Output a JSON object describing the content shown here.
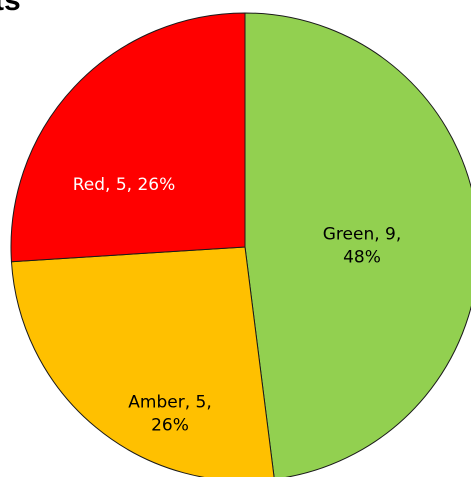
{
  "header": {
    "title_fragment": "ts"
  },
  "chart_data": {
    "type": "pie",
    "title": "",
    "slices": [
      {
        "category": "Green",
        "value": 9,
        "percent": 48,
        "color": "#92d050",
        "label_lines": [
          "Green, 9,",
          "48%"
        ],
        "label_color": "#000000"
      },
      {
        "category": "Amber",
        "value": 5,
        "percent": 26,
        "color": "#ffc000",
        "label_lines": [
          "Amber, 5,",
          "26%"
        ],
        "label_color": "#000000"
      },
      {
        "category": "Red",
        "value": 5,
        "percent": 26,
        "color": "#ff0000",
        "label_lines": [
          "Red, 5, 26%"
        ],
        "label_color": "#ffffff"
      }
    ],
    "start_angle_deg": 0,
    "direction": "clockwise",
    "legend": "none"
  }
}
